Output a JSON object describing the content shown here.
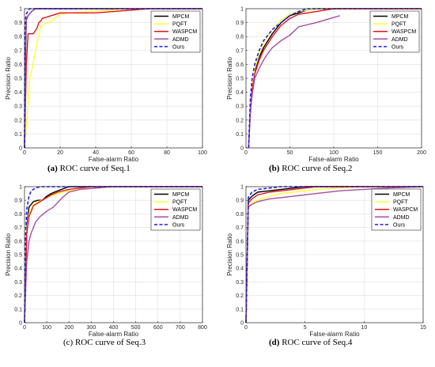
{
  "legend": {
    "entries": [
      {
        "name": "MPCM",
        "color": "#000000",
        "dash": false
      },
      {
        "name": "PQFT",
        "color": "#ffff33",
        "dash": false
      },
      {
        "name": "WASPCM",
        "color": "#e8101e",
        "dash": false
      },
      {
        "name": "ADMD",
        "color": "#a64ca6",
        "dash": false
      },
      {
        "name": "Ours",
        "color": "#1a1aff",
        "dash": true
      }
    ]
  },
  "chart_data": [
    {
      "type": "line",
      "panel_letter": "(a)",
      "caption": " ROC curve of Seq.1",
      "xlabel": "False-alarm Ratio",
      "ylabel": "Precision Ratio",
      "xlim": [
        0,
        100
      ],
      "ylim": [
        0,
        1
      ],
      "xticks": [
        0,
        20,
        40,
        60,
        80,
        100
      ],
      "yticks": [
        0,
        0.1,
        0.2,
        0.3,
        0.4,
        0.5,
        0.6,
        0.7,
        0.8,
        0.9,
        1
      ],
      "grid": true,
      "legend_position": "top-right",
      "series": [
        {
          "name": "MPCM",
          "x": [
            0,
            0.3,
            1,
            2,
            4,
            6,
            100
          ],
          "y": [
            0,
            0.5,
            0.92,
            0.95,
            0.98,
            1,
            1
          ]
        },
        {
          "name": "PQFT",
          "x": [
            0,
            1,
            3,
            5,
            7,
            9,
            12,
            14,
            17,
            20,
            25,
            60,
            100
          ],
          "y": [
            0,
            0.15,
            0.5,
            0.62,
            0.75,
            0.87,
            0.9,
            0.9,
            0.93,
            0.96,
            0.97,
            1,
            1
          ]
        },
        {
          "name": "WASPCM",
          "x": [
            0,
            1,
            2,
            3,
            5,
            7,
            8,
            9,
            10,
            15,
            20,
            40,
            50,
            60,
            70,
            100
          ],
          "y": [
            0,
            0.6,
            0.82,
            0.82,
            0.82,
            0.86,
            0.9,
            0.91,
            0.93,
            0.95,
            0.97,
            0.97,
            0.98,
            0.99,
            1,
            1
          ]
        },
        {
          "name": "ADMD",
          "x": [
            0,
            0.5,
            1,
            2,
            4,
            6,
            100
          ],
          "y": [
            0,
            0.7,
            0.92,
            0.95,
            0.98,
            1,
            1
          ]
        },
        {
          "name": "Ours",
          "x": [
            0,
            0.2,
            0.5,
            1,
            2,
            3,
            100
          ],
          "y": [
            0,
            0.8,
            0.92,
            0.96,
            0.99,
            1,
            1
          ]
        }
      ]
    },
    {
      "type": "line",
      "panel_letter": "(b)",
      "caption": " ROC curve of Seq.2",
      "xlabel": "False-alarm Ratio",
      "ylabel": "Precision Ratio",
      "xlim": [
        0,
        200
      ],
      "ylim": [
        0,
        1
      ],
      "xticks": [
        0,
        50,
        100,
        150,
        200
      ],
      "yticks": [
        0,
        0.1,
        0.2,
        0.3,
        0.4,
        0.5,
        0.6,
        0.7,
        0.8,
        0.9,
        1
      ],
      "grid": true,
      "legend_position": "top-right",
      "series": [
        {
          "name": "MPCM",
          "x": [
            3,
            5,
            7,
            10,
            15,
            20,
            30,
            40,
            50,
            60,
            70,
            80,
            100,
            200
          ],
          "y": [
            0,
            0.28,
            0.43,
            0.55,
            0.65,
            0.72,
            0.82,
            0.9,
            0.95,
            0.97,
            0.99,
            1,
            1,
            1
          ]
        },
        {
          "name": "PQFT",
          "x": [
            3,
            5,
            7,
            10,
            15,
            20,
            30,
            40,
            50,
            60,
            70,
            80,
            100,
            200
          ],
          "y": [
            0,
            0.3,
            0.45,
            0.57,
            0.67,
            0.75,
            0.85,
            0.92,
            0.96,
            0.98,
            0.99,
            1,
            1,
            1
          ]
        },
        {
          "name": "WASPCM",
          "x": [
            3,
            5,
            7,
            10,
            15,
            20,
            30,
            40,
            50,
            60,
            80,
            100,
            200
          ],
          "y": [
            0,
            0.27,
            0.42,
            0.53,
            0.63,
            0.7,
            0.8,
            0.88,
            0.93,
            0.96,
            0.98,
            1,
            1
          ]
        },
        {
          "name": "ADMD",
          "x": [
            3,
            5,
            7,
            10,
            15,
            20,
            25,
            30,
            40,
            50,
            60,
            80,
            107
          ],
          "y": [
            0,
            0.25,
            0.38,
            0.5,
            0.57,
            0.63,
            0.68,
            0.72,
            0.77,
            0.81,
            0.87,
            0.9,
            0.95
          ]
        },
        {
          "name": "Ours",
          "x": [
            3,
            5,
            7,
            10,
            15,
            20,
            30,
            40,
            50,
            60,
            70,
            200
          ],
          "y": [
            0,
            0.35,
            0.5,
            0.6,
            0.7,
            0.77,
            0.85,
            0.9,
            0.95,
            0.98,
            1,
            1
          ]
        }
      ]
    },
    {
      "type": "line",
      "panel_letter": "",
      "caption": "(c) ROC curve of Seq.3",
      "xlabel": "False-alarm Ratio",
      "ylabel": "Precision Ratio",
      "xlim": [
        0,
        800
      ],
      "ylim": [
        0,
        1
      ],
      "xticks": [
        0,
        100,
        200,
        300,
        400,
        500,
        600,
        700,
        800
      ],
      "yticks": [
        0,
        0.1,
        0.2,
        0.3,
        0.4,
        0.5,
        0.6,
        0.7,
        0.8,
        0.9,
        1
      ],
      "grid": true,
      "legend_position": "top-right",
      "series": [
        {
          "name": "MPCM",
          "x": [
            0,
            10,
            20,
            40,
            60,
            80,
            100,
            120,
            150,
            200,
            800
          ],
          "y": [
            0,
            0.7,
            0.85,
            0.89,
            0.9,
            0.9,
            0.93,
            0.95,
            0.97,
            1,
            1
          ]
        },
        {
          "name": "PQFT",
          "x": [
            0,
            10,
            20,
            40,
            60,
            80,
            100,
            150,
            200,
            250,
            300,
            800
          ],
          "y": [
            0,
            0.68,
            0.8,
            0.87,
            0.89,
            0.9,
            0.92,
            0.95,
            0.97,
            0.98,
            1,
            1
          ]
        },
        {
          "name": "WASPCM",
          "x": [
            0,
            10,
            20,
            40,
            60,
            80,
            100,
            120,
            150,
            200,
            250,
            300,
            800
          ],
          "y": [
            0,
            0.65,
            0.78,
            0.86,
            0.88,
            0.9,
            0.92,
            0.94,
            0.96,
            0.98,
            0.99,
            1,
            1
          ]
        },
        {
          "name": "ADMD",
          "x": [
            0,
            10,
            20,
            30,
            50,
            70,
            100,
            130,
            170,
            200,
            250,
            400,
            800
          ],
          "y": [
            0,
            0.45,
            0.6,
            0.66,
            0.74,
            0.78,
            0.82,
            0.85,
            0.92,
            0.96,
            0.98,
            1,
            1
          ]
        },
        {
          "name": "Ours",
          "x": [
            0,
            5,
            10,
            20,
            30,
            50,
            70,
            800
          ],
          "y": [
            0,
            0.65,
            0.83,
            0.93,
            0.97,
            0.99,
            1,
            1
          ]
        }
      ]
    },
    {
      "type": "line",
      "panel_letter": "(d)",
      "caption": " ROC curve of Seq.4",
      "xlabel": "False-alarm Ratio",
      "ylabel": "Precision Ratio",
      "xlim": [
        0,
        15
      ],
      "ylim": [
        0,
        1
      ],
      "xticks": [
        0,
        5,
        10,
        15
      ],
      "yticks": [
        0,
        0.1,
        0.2,
        0.3,
        0.4,
        0.5,
        0.6,
        0.7,
        0.8,
        0.9,
        1
      ],
      "grid": true,
      "legend_position": "top-right",
      "series": [
        {
          "name": "MPCM",
          "x": [
            0,
            0.2,
            0.5,
            1,
            2,
            3,
            4,
            5,
            6,
            15
          ],
          "y": [
            0,
            0.9,
            0.93,
            0.96,
            0.97,
            0.98,
            0.99,
            1,
            1,
            1
          ]
        },
        {
          "name": "PQFT",
          "x": [
            0,
            0.2,
            0.5,
            1,
            2,
            3,
            4,
            5,
            6,
            8,
            10,
            15
          ],
          "y": [
            0,
            0.85,
            0.88,
            0.9,
            0.93,
            0.95,
            0.96,
            0.97,
            0.98,
            0.99,
            1,
            1
          ]
        },
        {
          "name": "WASPCM",
          "x": [
            0,
            0.2,
            0.5,
            1,
            2,
            3,
            4,
            5,
            6,
            8,
            15
          ],
          "y": [
            0,
            0.88,
            0.91,
            0.94,
            0.96,
            0.97,
            0.98,
            0.99,
            1,
            1,
            1
          ]
        },
        {
          "name": "ADMD",
          "x": [
            0,
            0.2,
            0.5,
            1,
            2,
            3,
            4,
            5,
            6,
            8,
            10,
            12,
            15
          ],
          "y": [
            0,
            0.85,
            0.87,
            0.89,
            0.91,
            0.92,
            0.93,
            0.94,
            0.95,
            0.97,
            0.98,
            0.99,
            1
          ]
        },
        {
          "name": "Ours",
          "x": [
            0,
            0.2,
            0.5,
            1,
            2,
            3,
            4,
            15
          ],
          "y": [
            0,
            0.92,
            0.96,
            0.98,
            0.99,
            1,
            1,
            1
          ]
        }
      ]
    }
  ]
}
